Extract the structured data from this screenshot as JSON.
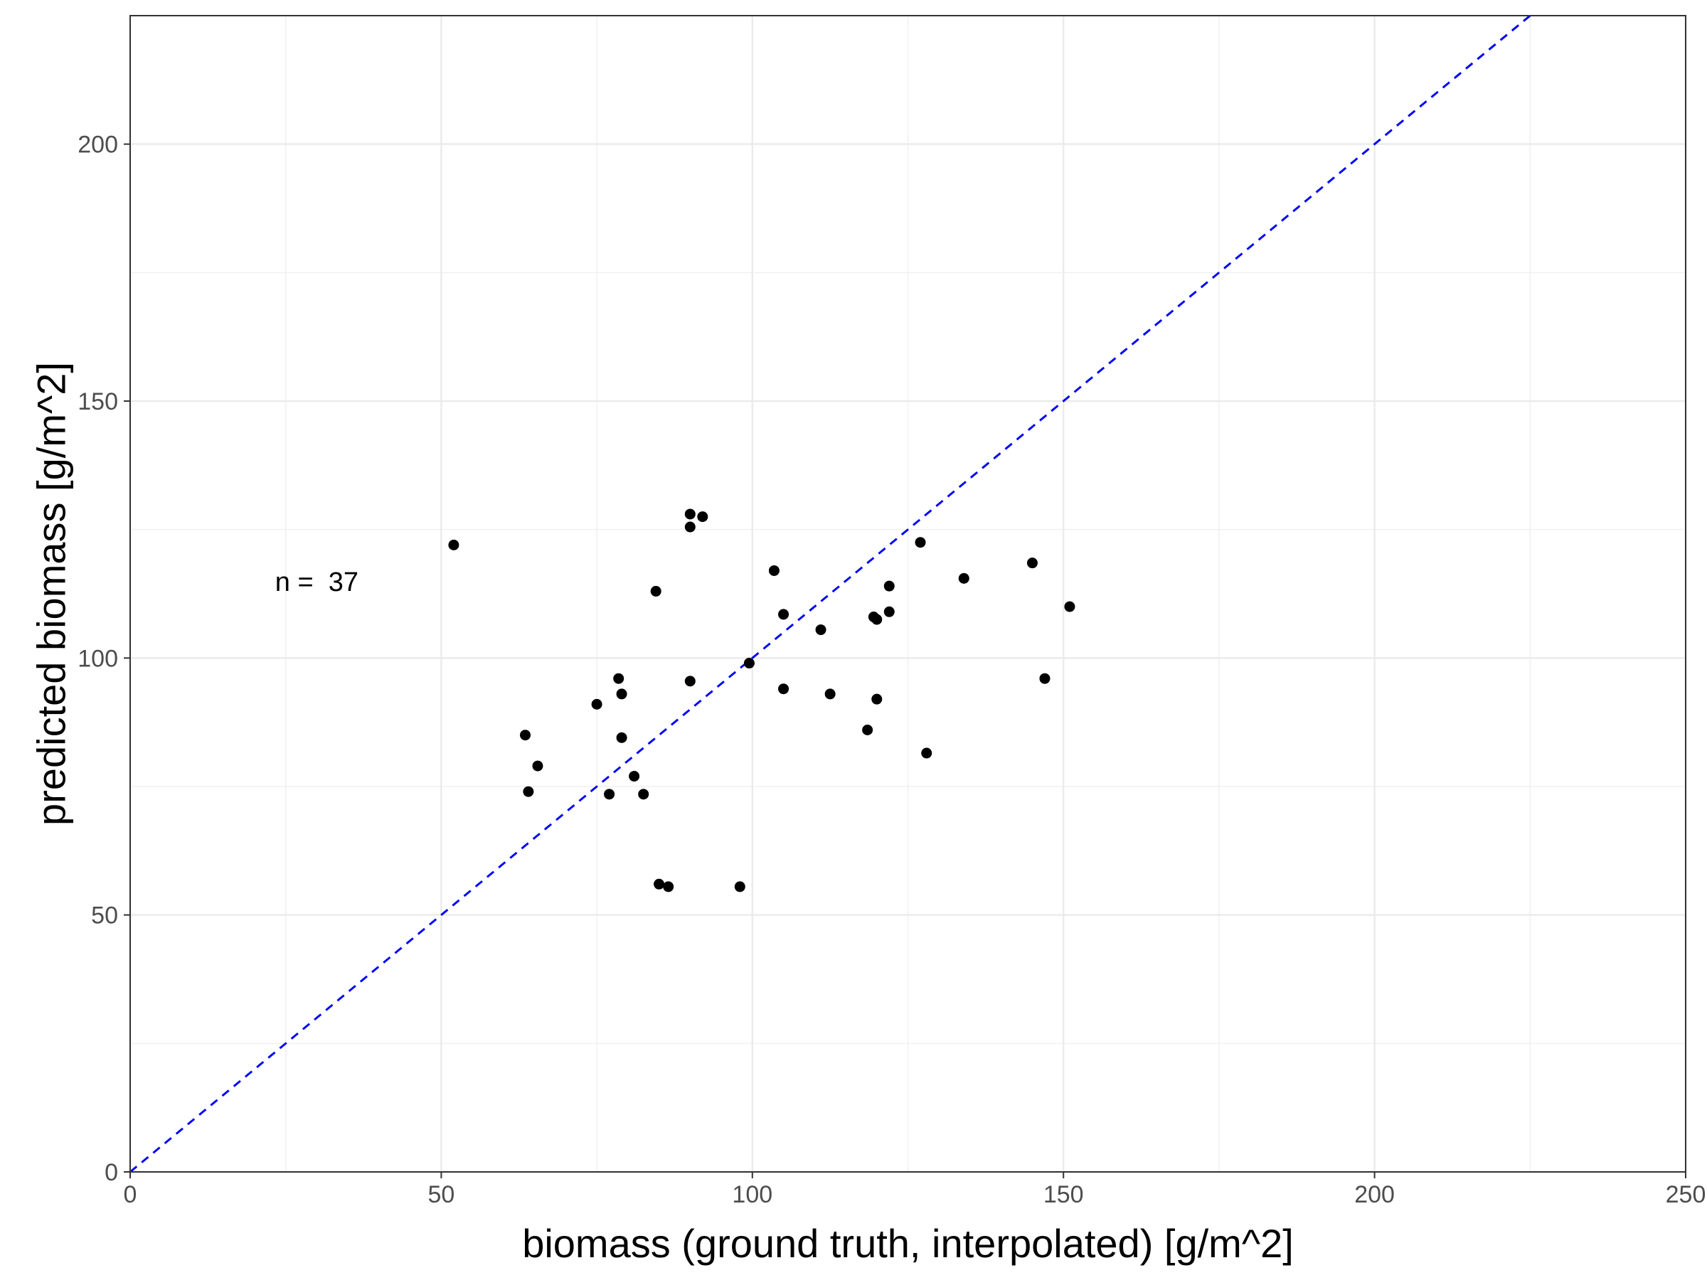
{
  "chart_data": {
    "type": "scatter",
    "title": "",
    "xlabel": "biomass (ground truth, interpolated) [g/m^2]",
    "ylabel": "predicted biomass [g/m^2]",
    "xlim": [
      0,
      250
    ],
    "ylim": [
      0,
      225
    ],
    "x_ticks": [
      0,
      50,
      100,
      150,
      200,
      250
    ],
    "y_ticks": [
      0,
      50,
      100,
      150,
      200
    ],
    "x_tick_labels": [
      "0",
      "50",
      "100",
      "150",
      "200",
      "250"
    ],
    "y_tick_labels": [
      "0",
      "50",
      "100",
      "150",
      "200"
    ],
    "grid": true,
    "reference_line": {
      "slope": 1,
      "intercept": 0,
      "style": "dashed",
      "color": "#0000ff"
    },
    "annotation": "n =  37",
    "annotation_at": [
      30,
      115
    ],
    "point_color": "#000000",
    "points": [
      {
        "x": 52,
        "y": 122
      },
      {
        "x": 63.5,
        "y": 85
      },
      {
        "x": 64,
        "y": 74
      },
      {
        "x": 65.5,
        "y": 79
      },
      {
        "x": 75,
        "y": 91
      },
      {
        "x": 77,
        "y": 73.5
      },
      {
        "x": 78.5,
        "y": 96
      },
      {
        "x": 79,
        "y": 93
      },
      {
        "x": 79,
        "y": 84.5
      },
      {
        "x": 81,
        "y": 77
      },
      {
        "x": 82.5,
        "y": 73.5
      },
      {
        "x": 84.5,
        "y": 113
      },
      {
        "x": 85,
        "y": 56
      },
      {
        "x": 86.5,
        "y": 55.5
      },
      {
        "x": 90,
        "y": 128
      },
      {
        "x": 90,
        "y": 125.5
      },
      {
        "x": 90,
        "y": 95.5
      },
      {
        "x": 92,
        "y": 127.5
      },
      {
        "x": 98,
        "y": 55.5
      },
      {
        "x": 99.5,
        "y": 99
      },
      {
        "x": 103.5,
        "y": 117
      },
      {
        "x": 105,
        "y": 108.5
      },
      {
        "x": 105,
        "y": 94
      },
      {
        "x": 111,
        "y": 105.5
      },
      {
        "x": 112.5,
        "y": 93
      },
      {
        "x": 118.5,
        "y": 86
      },
      {
        "x": 119.5,
        "y": 108
      },
      {
        "x": 120,
        "y": 107.5
      },
      {
        "x": 120,
        "y": 92
      },
      {
        "x": 122,
        "y": 114
      },
      {
        "x": 122,
        "y": 109
      },
      {
        "x": 127,
        "y": 122.5
      },
      {
        "x": 128,
        "y": 81.5
      },
      {
        "x": 134,
        "y": 115.5
      },
      {
        "x": 145,
        "y": 118.5
      },
      {
        "x": 147,
        "y": 96
      },
      {
        "x": 151,
        "y": 110
      }
    ]
  }
}
